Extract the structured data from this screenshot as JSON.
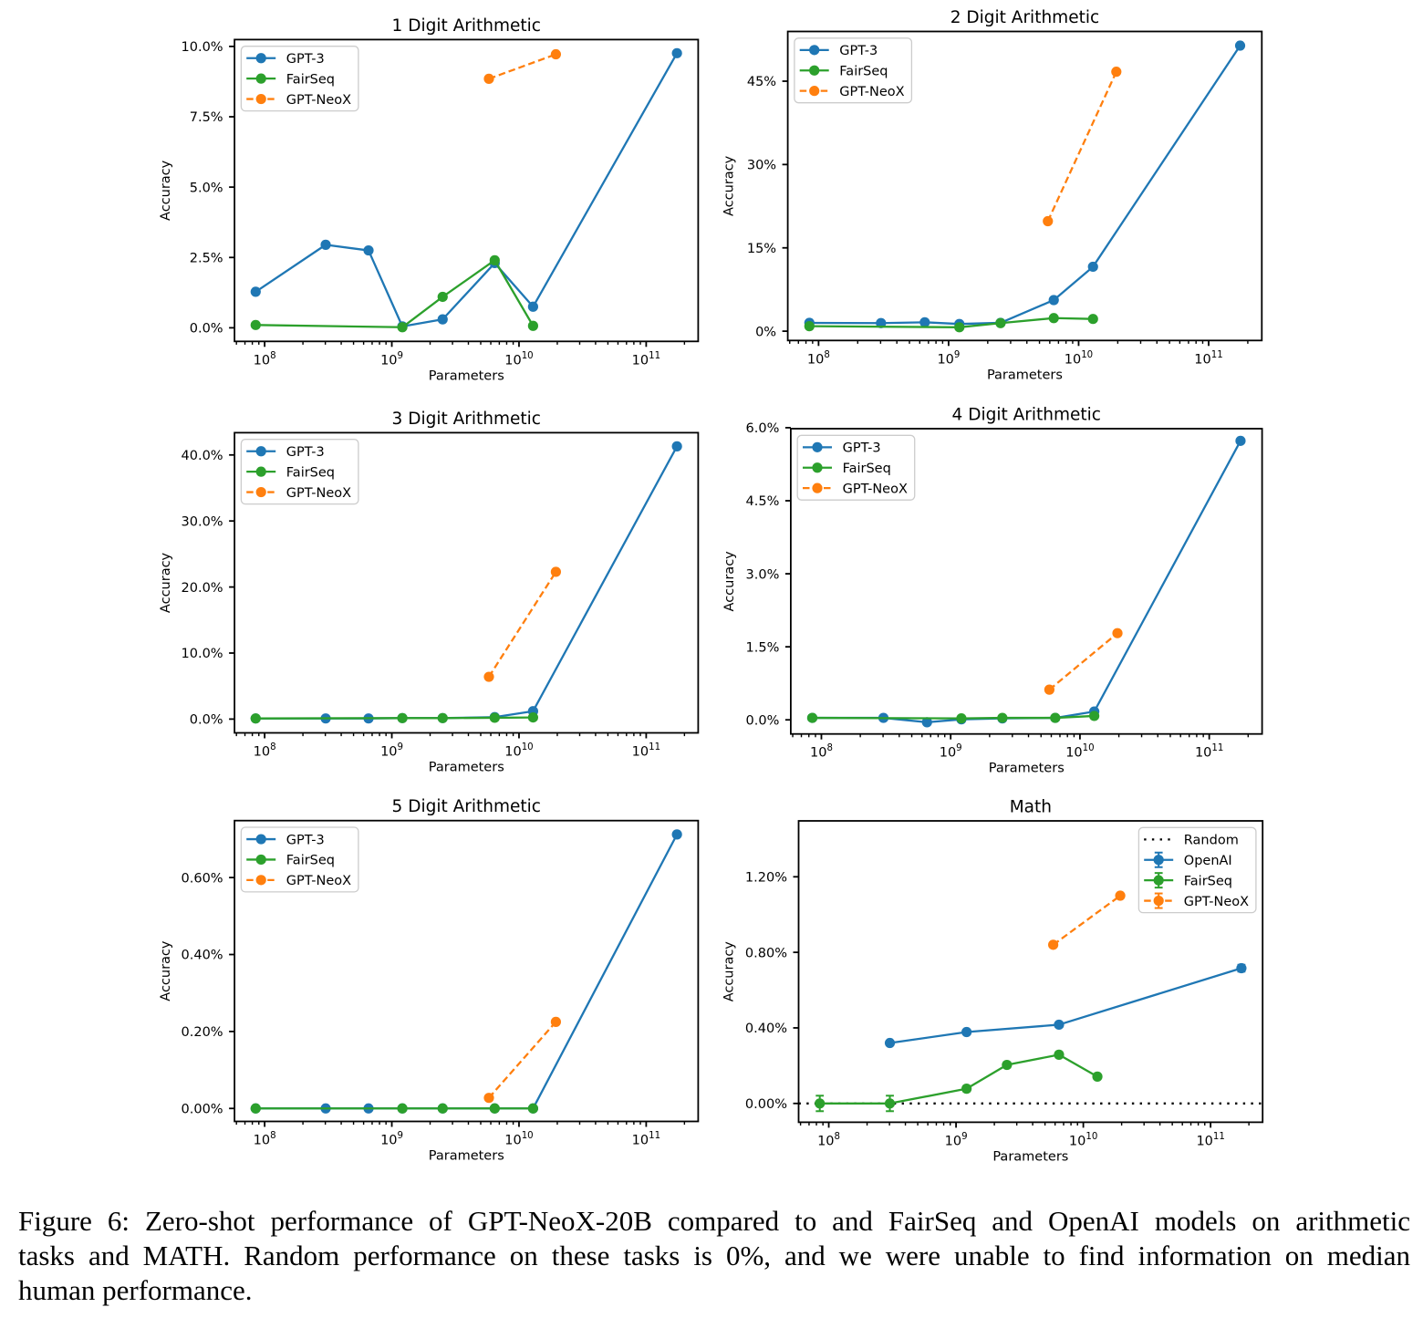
{
  "figure_caption": {
    "lines": [
      "Figure 6: Zero-shot performance of GPT-NeoX-20B compared to and FairSeq and OpenAI models on arithmetic",
      "tasks and MATH. Random performance on these tasks is 0%, and we were unable to find information on median",
      "human performance."
    ]
  },
  "colors": {
    "gpt3_blue": "#1f77b4",
    "fairseq_green": "#2ca02c",
    "neox_orange": "#ff7f0e",
    "random_black": "#000000",
    "axis_black": "#000000",
    "legend_border": "#cccccc"
  },
  "chart_data": [
    {
      "type": "line",
      "title": "1 Digit Arithmetic",
      "xlabel": "Parameters",
      "ylabel": "Accuracy",
      "xscale": "log",
      "xlim_log10": [
        7.7631,
        11.4089
      ],
      "ylim": [
        -0.483,
        10.243
      ],
      "xtick_labels": [
        {
          "base": "10",
          "exp": "8"
        },
        {
          "base": "10",
          "exp": "9"
        },
        {
          "base": "10",
          "exp": "10"
        },
        {
          "base": "10",
          "exp": "11"
        }
      ],
      "ytick_values": [
        0.0,
        2.5,
        5.0,
        7.5,
        10.0
      ],
      "ytick_labels": [
        "0.0%",
        "2.5%",
        "5.0%",
        "7.5%",
        "10.0%"
      ],
      "legend_loc": "upper left",
      "series": [
        {
          "name": "GPT-3",
          "color": "#1f77b4",
          "linestyle": "solid",
          "x": [
            85000000.0,
            302000000.0,
            656000000.0,
            1210000000.0,
            2510000000.0,
            6440000000.0,
            12900000000.0,
            174600000000.0
          ],
          "y": [
            1.28,
            2.95,
            2.75,
            0.05,
            0.3,
            2.3,
            0.75,
            9.76
          ]
        },
        {
          "name": "FairSeq",
          "color": "#2ca02c",
          "linestyle": "solid",
          "x": [
            85000000.0,
            1210000000.0,
            2510000000.0,
            6440000000.0,
            12900000000.0
          ],
          "y": [
            0.1,
            0.02,
            1.1,
            2.4,
            0.07
          ]
        },
        {
          "name": "GPT-NeoX",
          "color": "#ff7f0e",
          "linestyle": "dashed",
          "x": [
            5800000000.0,
            19500000000.0
          ],
          "y": [
            8.85,
            9.72
          ]
        }
      ]
    },
    {
      "type": "line",
      "title": "2 Digit Arithmetic",
      "xlabel": "Parameters",
      "ylabel": "Accuracy",
      "xscale": "log",
      "xlim_log10": [
        7.7631,
        11.4089
      ],
      "ylim": [
        -1.675,
        53.95
      ],
      "xtick_labels": [
        {
          "base": "10",
          "exp": "8"
        },
        {
          "base": "10",
          "exp": "9"
        },
        {
          "base": "10",
          "exp": "10"
        },
        {
          "base": "10",
          "exp": "11"
        }
      ],
      "ytick_values": [
        0,
        15,
        30,
        45
      ],
      "ytick_labels": [
        "0%",
        "15%",
        "30%",
        "45%"
      ],
      "legend_loc": "upper left",
      "series": [
        {
          "name": "GPT-3",
          "color": "#1f77b4",
          "linestyle": "solid",
          "x": [
            85000000.0,
            302000000.0,
            656000000.0,
            1210000000.0,
            2510000000.0,
            6440000000.0,
            12900000000.0,
            174600000000.0
          ],
          "y": [
            1.5,
            1.45,
            1.6,
            1.3,
            1.5,
            5.6,
            11.6,
            51.4
          ]
        },
        {
          "name": "FairSeq",
          "color": "#2ca02c",
          "linestyle": "solid",
          "x": [
            85000000.0,
            1210000000.0,
            2510000000.0,
            6440000000.0,
            12900000000.0
          ],
          "y": [
            0.9,
            0.7,
            1.45,
            2.35,
            2.2
          ]
        },
        {
          "name": "GPT-NeoX",
          "color": "#ff7f0e",
          "linestyle": "dashed",
          "x": [
            5800000000.0,
            19500000000.0
          ],
          "y": [
            19.8,
            46.7
          ]
        }
      ]
    },
    {
      "type": "line",
      "title": "3 Digit Arithmetic",
      "xlabel": "Parameters",
      "ylabel": "Accuracy",
      "xscale": "log",
      "xlim_log10": [
        7.7631,
        11.4089
      ],
      "ylim": [
        -2.086,
        43.37
      ],
      "xtick_labels": [
        {
          "base": "10",
          "exp": "8"
        },
        {
          "base": "10",
          "exp": "9"
        },
        {
          "base": "10",
          "exp": "10"
        },
        {
          "base": "10",
          "exp": "11"
        }
      ],
      "ytick_values": [
        0,
        10,
        20,
        30,
        40
      ],
      "ytick_labels": [
        "0.0%",
        "10.0%",
        "20.0%",
        "30.0%",
        "40.0%"
      ],
      "legend_loc": "upper left",
      "series": [
        {
          "name": "GPT-3",
          "color": "#1f77b4",
          "linestyle": "solid",
          "x": [
            85000000.0,
            302000000.0,
            656000000.0,
            1210000000.0,
            2510000000.0,
            6440000000.0,
            12900000000.0,
            174600000000.0
          ],
          "y": [
            0.1,
            0.1,
            0.1,
            0.15,
            0.15,
            0.3,
            1.2,
            41.3
          ]
        },
        {
          "name": "FairSeq",
          "color": "#2ca02c",
          "linestyle": "solid",
          "x": [
            85000000.0,
            1210000000.0,
            2510000000.0,
            6440000000.0,
            12900000000.0
          ],
          "y": [
            0.1,
            0.15,
            0.15,
            0.2,
            0.25
          ]
        },
        {
          "name": "GPT-NeoX",
          "color": "#ff7f0e",
          "linestyle": "dashed",
          "x": [
            5800000000.0,
            19500000000.0
          ],
          "y": [
            6.4,
            22.3
          ]
        }
      ]
    },
    {
      "type": "line",
      "title": "4 Digit Arithmetic",
      "xlabel": "Parameters",
      "ylabel": "Accuracy",
      "xscale": "log",
      "xlim_log10": [
        7.7631,
        11.4089
      ],
      "ylim": [
        -0.29,
        5.98
      ],
      "xtick_labels": [
        {
          "base": "10",
          "exp": "8"
        },
        {
          "base": "10",
          "exp": "9"
        },
        {
          "base": "10",
          "exp": "10"
        },
        {
          "base": "10",
          "exp": "11"
        }
      ],
      "ytick_values": [
        0.0,
        1.5,
        3.0,
        4.5,
        6.0
      ],
      "ytick_labels": [
        "0.0%",
        "1.5%",
        "3.0%",
        "4.5%",
        "6.0%"
      ],
      "legend_loc": "upper left",
      "series": [
        {
          "name": "GPT-3",
          "color": "#1f77b4",
          "linestyle": "solid",
          "x": [
            85000000.0,
            302000000.0,
            656000000.0,
            1210000000.0,
            2510000000.0,
            6440000000.0,
            12900000000.0,
            174600000000.0
          ],
          "y": [
            0.04,
            0.04,
            -0.05,
            0.01,
            0.03,
            0.04,
            0.17,
            5.73
          ]
        },
        {
          "name": "FairSeq",
          "color": "#2ca02c",
          "linestyle": "solid",
          "x": [
            85000000.0,
            1210000000.0,
            2510000000.0,
            6440000000.0,
            12900000000.0
          ],
          "y": [
            0.04,
            0.03,
            0.04,
            0.04,
            0.08
          ]
        },
        {
          "name": "GPT-NeoX",
          "color": "#ff7f0e",
          "linestyle": "dashed",
          "x": [
            5800000000.0,
            19500000000.0
          ],
          "y": [
            0.62,
            1.78
          ]
        }
      ]
    },
    {
      "type": "line",
      "title": "5 Digit Arithmetic",
      "xlabel": "Parameters",
      "ylabel": "Accuracy",
      "xscale": "log",
      "xlim_log10": [
        7.7631,
        11.4089
      ],
      "ylim": [
        -0.0337,
        0.748
      ],
      "xtick_labels": [
        {
          "base": "10",
          "exp": "8"
        },
        {
          "base": "10",
          "exp": "9"
        },
        {
          "base": "10",
          "exp": "10"
        },
        {
          "base": "10",
          "exp": "11"
        }
      ],
      "ytick_values": [
        0.0,
        0.2,
        0.4,
        0.6
      ],
      "ytick_labels": [
        "0.00%",
        "0.20%",
        "0.40%",
        "0.60%"
      ],
      "legend_loc": "upper left",
      "series": [
        {
          "name": "GPT-3",
          "color": "#1f77b4",
          "linestyle": "solid",
          "x": [
            85000000.0,
            302000000.0,
            656000000.0,
            1210000000.0,
            2510000000.0,
            6440000000.0,
            12900000000.0,
            174600000000.0
          ],
          "y": [
            0.0,
            0.0,
            0.0,
            0.0,
            0.0,
            0.0,
            0.0,
            0.712
          ]
        },
        {
          "name": "FairSeq",
          "color": "#2ca02c",
          "linestyle": "solid",
          "x": [
            85000000.0,
            1210000000.0,
            2510000000.0,
            6440000000.0,
            12900000000.0
          ],
          "y": [
            0.0,
            0.0,
            0.0,
            0.0,
            0.0
          ]
        },
        {
          "name": "GPT-NeoX",
          "color": "#ff7f0e",
          "linestyle": "dashed",
          "x": [
            5800000000.0,
            19500000000.0
          ],
          "y": [
            0.0275,
            0.225
          ]
        }
      ]
    },
    {
      "type": "line",
      "title": "Math",
      "xlabel": "Parameters",
      "ylabel": "Accuracy",
      "xscale": "log",
      "xlim_log10": [
        7.7631,
        11.4089
      ],
      "ylim": [
        -0.0995,
        1.496
      ],
      "xtick_labels": [
        {
          "base": "10",
          "exp": "8"
        },
        {
          "base": "10",
          "exp": "9"
        },
        {
          "base": "10",
          "exp": "10"
        },
        {
          "base": "10",
          "exp": "11"
        }
      ],
      "ytick_values": [
        0.0,
        0.4,
        0.8,
        1.2
      ],
      "ytick_labels": [
        "0.00%",
        "0.40%",
        "0.80%",
        "1.20%"
      ],
      "legend_loc": "upper right",
      "baseline": {
        "name": "Random",
        "y": 0.0,
        "color": "#000000",
        "linestyle": "dotted"
      },
      "series": [
        {
          "name": "OpenAI",
          "color": "#1f77b4",
          "linestyle": "solid",
          "errorbars": true,
          "x": [
            302000000.0,
            1210000000.0,
            6440000000.0,
            174600000000.0
          ],
          "y": [
            0.32,
            0.378,
            0.417,
            0.716
          ],
          "yerr": [
            0.012,
            0.012,
            0.012,
            0.018
          ]
        },
        {
          "name": "FairSeq",
          "color": "#2ca02c",
          "linestyle": "solid",
          "errorbars": true,
          "x": [
            85000000.0,
            302000000.0,
            1210000000.0,
            2510000000.0,
            6440000000.0,
            12900000000.0
          ],
          "y": [
            0.0,
            0.0,
            0.078,
            0.204,
            0.258,
            0.142
          ],
          "yerr": [
            0.041,
            0.041,
            0.014,
            0.014,
            0.014,
            0.012
          ]
        },
        {
          "name": "GPT-NeoX",
          "color": "#ff7f0e",
          "linestyle": "dashed",
          "errorbars": true,
          "x": [
            5800000000.0,
            19500000000.0
          ],
          "y": [
            0.84,
            1.1
          ],
          "yerr": [
            0.012,
            0.012
          ]
        }
      ]
    }
  ]
}
